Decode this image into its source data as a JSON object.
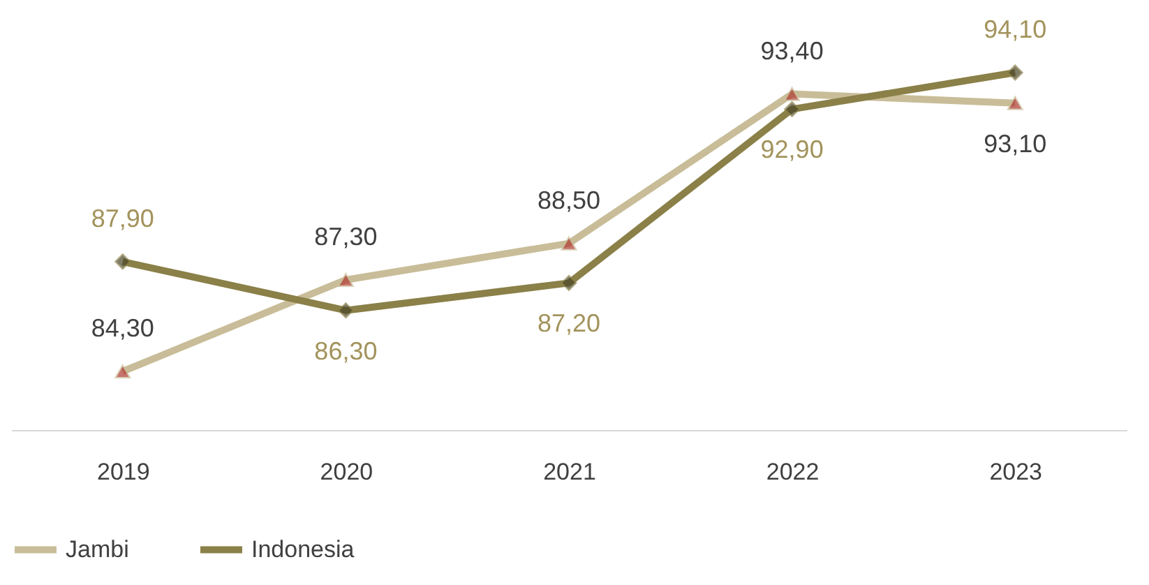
{
  "chart_data": {
    "type": "line",
    "categories": [
      "2019",
      "2020",
      "2021",
      "2022",
      "2023"
    ],
    "series": [
      {
        "name": "Jambi",
        "color": "#c8bd98",
        "values": [
          84.3,
          87.3,
          88.5,
          93.4,
          93.1
        ],
        "value_labels": [
          "84,30",
          "87,30",
          "88,50",
          "93,40",
          "93,10"
        ],
        "marker": "triangle"
      },
      {
        "name": "Indonesia",
        "color": "#8a8048",
        "values": [
          87.9,
          86.3,
          87.2,
          92.9,
          94.1
        ],
        "value_labels": [
          "87,90",
          "86,30",
          "87,20",
          "92,90",
          "94,10"
        ],
        "marker": "diamond"
      }
    ],
    "legend": "bottom",
    "grid": false,
    "tick_labels": "x",
    "line_style": "solid"
  }
}
